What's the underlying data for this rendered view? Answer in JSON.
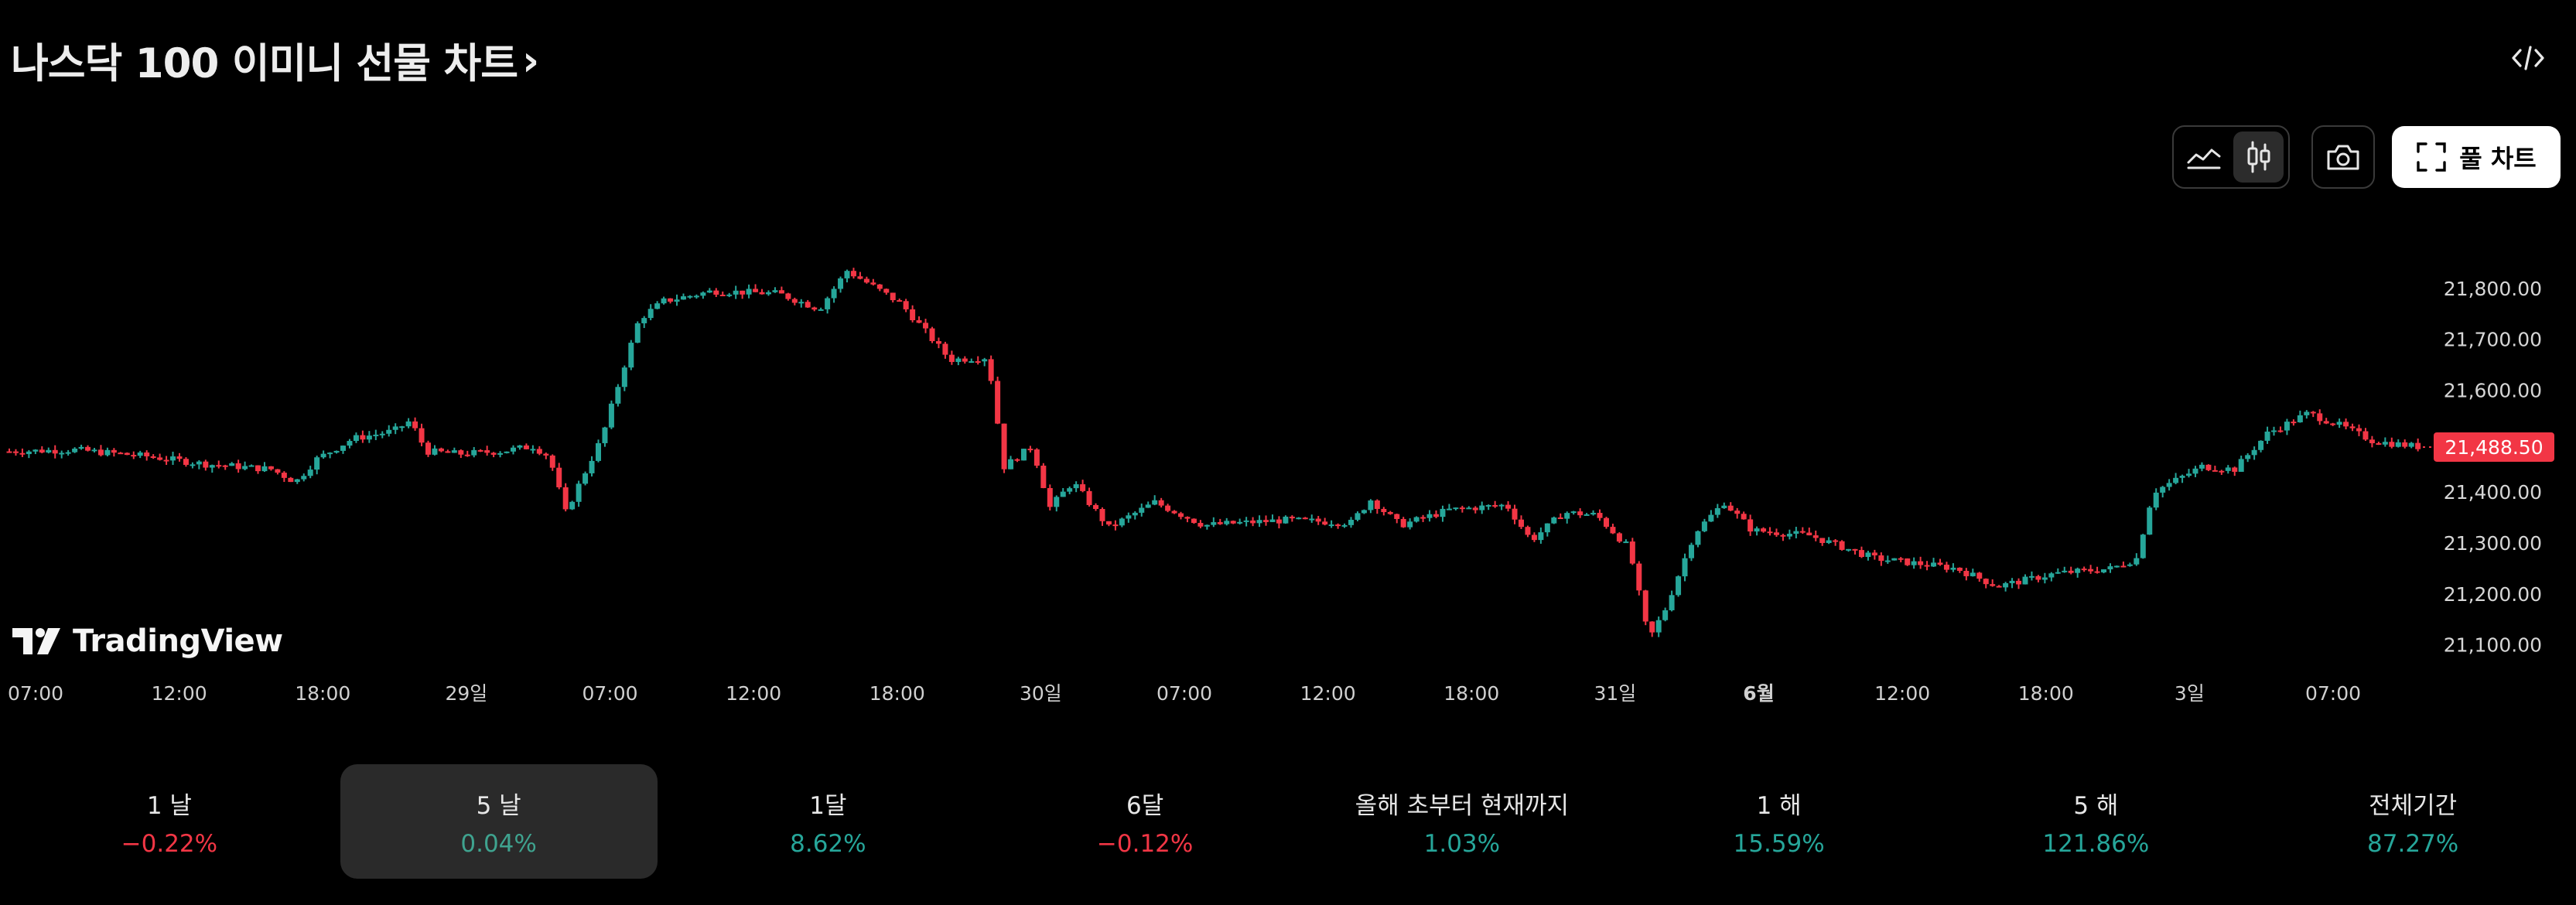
{
  "header": {
    "title": "나스닥 100 이미니 선물 차트",
    "chevron": "›",
    "embed_icon": "code-icon"
  },
  "toolbar": {
    "area_icon": "area-chart-icon",
    "candles_icon": "candlestick-icon",
    "camera_icon": "camera-icon",
    "full_chart_label": "풀 차트",
    "full_chart_icon": "fullscreen-icon"
  },
  "logo": {
    "text": "TradingView"
  },
  "colors": {
    "up": "#26a69a",
    "down": "#f23645",
    "price_tag_bg": "#f23645",
    "background": "#000000"
  },
  "chart_data": {
    "type": "candlestick",
    "title": "",
    "ylim": [
      21060,
      21850
    ],
    "y_ticks": [
      21100,
      21200,
      21300,
      21400,
      21500,
      21600,
      21700,
      21800
    ],
    "y_tick_labels": [
      "21,100.00",
      "21,200.00",
      "21,300.00",
      "21,400.00",
      "21,500.00",
      "21,600.00",
      "21,700.00",
      "21,800.00"
    ],
    "last_price": 21488.5,
    "last_price_label": "21,488.50",
    "x_tick_labels": [
      "07:00",
      "12:00",
      "18:00",
      "29일",
      "07:00",
      "12:00",
      "18:00",
      "30일",
      "07:00",
      "12:00",
      "18:00",
      "31일",
      "6월",
      "12:00",
      "18:00",
      "3일",
      "07:00"
    ],
    "x_tick_bold": [
      false,
      false,
      false,
      false,
      false,
      false,
      false,
      false,
      false,
      false,
      false,
      false,
      true,
      false,
      false,
      false,
      false
    ],
    "grid": false,
    "price_path": [
      [
        0,
        21480
      ],
      [
        40,
        21483
      ],
      [
        85,
        21470
      ],
      [
        120,
        21455
      ],
      [
        160,
        21445
      ],
      [
        175,
        21420
      ],
      [
        188,
        21465
      ],
      [
        210,
        21505
      ],
      [
        235,
        21520
      ],
      [
        245,
        21540
      ],
      [
        255,
        21480
      ],
      [
        275,
        21475
      ],
      [
        300,
        21480
      ],
      [
        320,
        21490
      ],
      [
        330,
        21470
      ],
      [
        340,
        21360
      ],
      [
        352,
        21440
      ],
      [
        362,
        21505
      ],
      [
        375,
        21640
      ],
      [
        385,
        21740
      ],
      [
        400,
        21775
      ],
      [
        430,
        21795
      ],
      [
        470,
        21790
      ],
      [
        495,
        21760
      ],
      [
        512,
        21835
      ],
      [
        530,
        21800
      ],
      [
        545,
        21770
      ],
      [
        575,
        21660
      ],
      [
        598,
        21665
      ],
      [
        608,
        21450
      ],
      [
        625,
        21490
      ],
      [
        636,
        21370
      ],
      [
        650,
        21420
      ],
      [
        672,
        21330
      ],
      [
        700,
        21380
      ],
      [
        730,
        21335
      ],
      [
        780,
        21345
      ],
      [
        820,
        21340
      ],
      [
        832,
        21385
      ],
      [
        850,
        21335
      ],
      [
        880,
        21365
      ],
      [
        915,
        21375
      ],
      [
        930,
        21305
      ],
      [
        950,
        21360
      ],
      [
        970,
        21355
      ],
      [
        990,
        21290
      ],
      [
        1002,
        21110
      ],
      [
        1012,
        21170
      ],
      [
        1030,
        21320
      ],
      [
        1048,
        21380
      ],
      [
        1065,
        21325
      ],
      [
        1100,
        21315
      ],
      [
        1140,
        21270
      ],
      [
        1190,
        21250
      ],
      [
        1215,
        21215
      ],
      [
        1250,
        21240
      ],
      [
        1285,
        21250
      ],
      [
        1300,
        21270
      ],
      [
        1310,
        21400
      ],
      [
        1340,
        21450
      ],
      [
        1360,
        21445
      ],
      [
        1380,
        21515
      ],
      [
        1405,
        21555
      ],
      [
        1425,
        21530
      ],
      [
        1445,
        21500
      ],
      [
        1475,
        21488
      ]
    ]
  },
  "periods": [
    {
      "label": "1 날",
      "change": "−0.22%",
      "dir": "neg"
    },
    {
      "label": "5 날",
      "change": "0.04%",
      "dir": "pos"
    },
    {
      "label": "1달",
      "change": "8.62%",
      "dir": "pos"
    },
    {
      "label": "6달",
      "change": "−0.12%",
      "dir": "neg"
    },
    {
      "label": "올해 초부터 현재까지",
      "change": "1.03%",
      "dir": "pos"
    },
    {
      "label": "1 해",
      "change": "15.59%",
      "dir": "pos"
    },
    {
      "label": "5 해",
      "change": "121.86%",
      "dir": "pos"
    },
    {
      "label": "전체기간",
      "change": "87.27%",
      "dir": "pos"
    }
  ],
  "active_period_index": 1
}
